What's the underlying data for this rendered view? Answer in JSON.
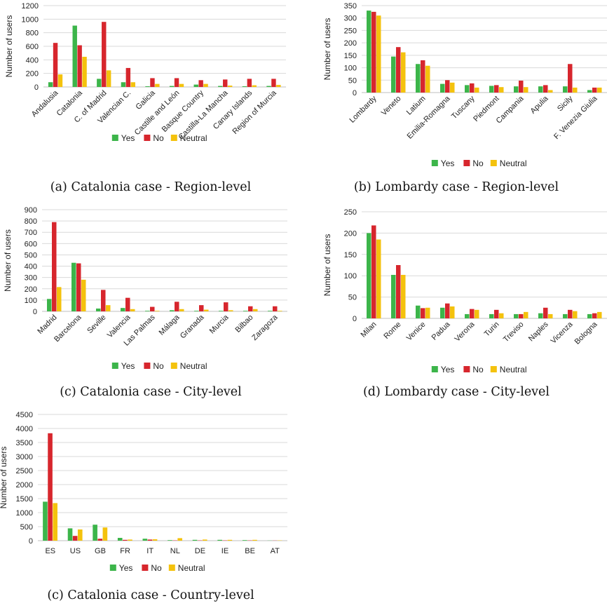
{
  "colors": {
    "Yes": "#3cb54a",
    "No": "#d7262d",
    "Neutral": "#f4c20d",
    "grid": "#d9d9d9",
    "axis": "#bfbfbf",
    "text": "#222222"
  },
  "legend": [
    "Yes",
    "No",
    "Neutral"
  ],
  "chart_data": [
    {
      "type": "bar",
      "ylabel": "Number of users",
      "ylim": [
        0,
        1200
      ],
      "yticks": [
        0,
        200,
        400,
        600,
        800,
        1000,
        1200
      ],
      "rotate_labels": true,
      "categories": [
        "Andalusia",
        "Catalonia",
        "C. of Madrid",
        "Valencian C.",
        "Galicia",
        "Castille and León",
        "Basque Country",
        "Castilla-La Mancha",
        "Canary Islands",
        "Region of Murcia"
      ],
      "series": [
        {
          "name": "Yes",
          "values": [
            70,
            905,
            120,
            70,
            10,
            15,
            35,
            15,
            10,
            15
          ]
        },
        {
          "name": "No",
          "values": [
            650,
            615,
            960,
            280,
            130,
            130,
            100,
            110,
            120,
            120
          ]
        },
        {
          "name": "Neutral",
          "values": [
            185,
            445,
            245,
            70,
            45,
            45,
            45,
            20,
            25,
            30
          ]
        }
      ],
      "caption": "(a) Catalonia case - Region-level"
    },
    {
      "type": "bar",
      "ylabel": "Number of users",
      "ylim": [
        0,
        350
      ],
      "yticks": [
        0,
        50,
        100,
        150,
        200,
        250,
        300,
        350
      ],
      "rotate_labels": true,
      "categories": [
        "Lombardy",
        "Veneto",
        "Latium",
        "Emilia-Romagna",
        "Tuscany",
        "Piedmont",
        "Campania",
        "Apulia",
        "Sicily",
        "F. Venezia Giulia"
      ],
      "series": [
        {
          "name": "Yes",
          "values": [
            330,
            145,
            115,
            35,
            30,
            27,
            25,
            25,
            25,
            10
          ]
        },
        {
          "name": "No",
          "values": [
            325,
            183,
            130,
            50,
            37,
            30,
            48,
            30,
            115,
            20
          ]
        },
        {
          "name": "Neutral",
          "values": [
            310,
            162,
            108,
            40,
            20,
            22,
            22,
            10,
            20,
            20
          ]
        }
      ],
      "caption": "(b) Lombardy case - Region-level"
    },
    {
      "type": "bar",
      "ylabel": "Number of users",
      "ylim": [
        0,
        900
      ],
      "yticks": [
        0,
        100,
        200,
        300,
        400,
        500,
        600,
        700,
        800,
        900
      ],
      "rotate_labels": true,
      "categories": [
        "Madrid",
        "Barcelona",
        "Seville",
        "Valencia",
        "Las Palmas",
        "Málaga",
        "Granada",
        "Murcia",
        "Bilbao",
        "Zaragoza"
      ],
      "series": [
        {
          "name": "Yes",
          "values": [
            110,
            430,
            25,
            30,
            5,
            10,
            5,
            5,
            5,
            5
          ]
        },
        {
          "name": "No",
          "values": [
            790,
            425,
            190,
            120,
            40,
            85,
            55,
            80,
            45,
            45
          ]
        },
        {
          "name": "Neutral",
          "values": [
            215,
            280,
            55,
            20,
            5,
            20,
            15,
            10,
            20,
            5
          ]
        }
      ],
      "caption": "(c) Catalonia case - City-level"
    },
    {
      "type": "bar",
      "ylabel": "Number of users",
      "ylim": [
        0,
        250
      ],
      "yticks": [
        0,
        50,
        100,
        150,
        200,
        250
      ],
      "rotate_labels": true,
      "categories": [
        "Milan",
        "Rome",
        "Venice",
        "Padua",
        "Verona",
        "Turin",
        "Treviso",
        "Naples",
        "Vicenza",
        "Bologna"
      ],
      "series": [
        {
          "name": "Yes",
          "values": [
            200,
            102,
            30,
            25,
            10,
            10,
            10,
            12,
            10,
            10
          ]
        },
        {
          "name": "No",
          "values": [
            218,
            125,
            24,
            35,
            22,
            20,
            10,
            25,
            20,
            12
          ]
        },
        {
          "name": "Neutral",
          "values": [
            185,
            102,
            25,
            28,
            20,
            12,
            15,
            10,
            17,
            15
          ]
        }
      ],
      "caption": "(d) Lombardy case - City-level"
    },
    {
      "type": "bar",
      "ylabel": "Number of users",
      "ylim": [
        0,
        4500
      ],
      "yticks": [
        0,
        500,
        1000,
        1500,
        2000,
        2500,
        3000,
        3500,
        4000,
        4500
      ],
      "rotate_labels": false,
      "categories": [
        "ES",
        "US",
        "GB",
        "FR",
        "IT",
        "NL",
        "DE",
        "IE",
        "BE",
        "AT"
      ],
      "series": [
        {
          "name": "Yes",
          "values": [
            1390,
            440,
            570,
            100,
            70,
            20,
            30,
            30,
            20,
            5
          ]
        },
        {
          "name": "No",
          "values": [
            3830,
            170,
            70,
            30,
            40,
            10,
            10,
            10,
            10,
            5
          ]
        },
        {
          "name": "Neutral",
          "values": [
            1340,
            400,
            470,
            40,
            50,
            90,
            40,
            30,
            30,
            10
          ]
        }
      ],
      "caption": "(c) Catalonia case - Country-level"
    }
  ]
}
